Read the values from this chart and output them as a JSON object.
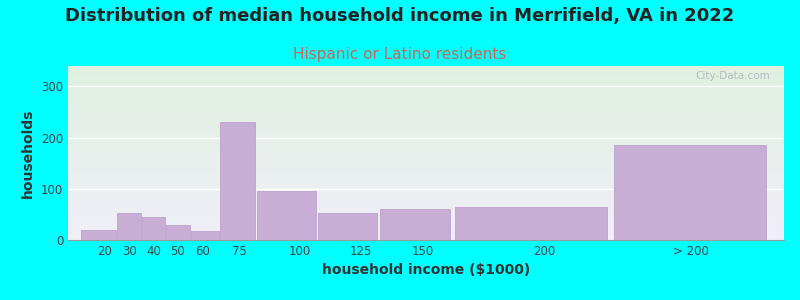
{
  "title": "Distribution of median household income in Merrifield, VA in 2022",
  "subtitle": "Hispanic or Latino residents",
  "xlabel": "household income ($1000)",
  "ylabel": "households",
  "background_color": "#00FFFF",
  "plot_bg_gradient_top": "#dff0df",
  "plot_bg_gradient_bottom": "#f0eef8",
  "bar_color": "#c8aed4",
  "bar_edge_color": "#b898c8",
  "values": [
    20,
    52,
    44,
    30,
    18,
    230,
    95,
    52,
    60,
    65,
    185
  ],
  "categories": [
    "20",
    "30",
    "40",
    "50",
    "60",
    "75",
    "100",
    "125",
    "150",
    "200",
    "> 200"
  ],
  "ylim": [
    0,
    340
  ],
  "yticks": [
    0,
    100,
    200,
    300
  ],
  "title_fontsize": 13,
  "subtitle_fontsize": 11,
  "title_color": "#222222",
  "subtitle_color": "#cc6655",
  "watermark": "City-Data.com",
  "bar_lefts": [
    10,
    25,
    35,
    45,
    55,
    67,
    82,
    107,
    132,
    162,
    227
  ],
  "bar_rights": [
    25,
    35,
    45,
    55,
    67,
    82,
    107,
    132,
    162,
    227,
    292
  ]
}
